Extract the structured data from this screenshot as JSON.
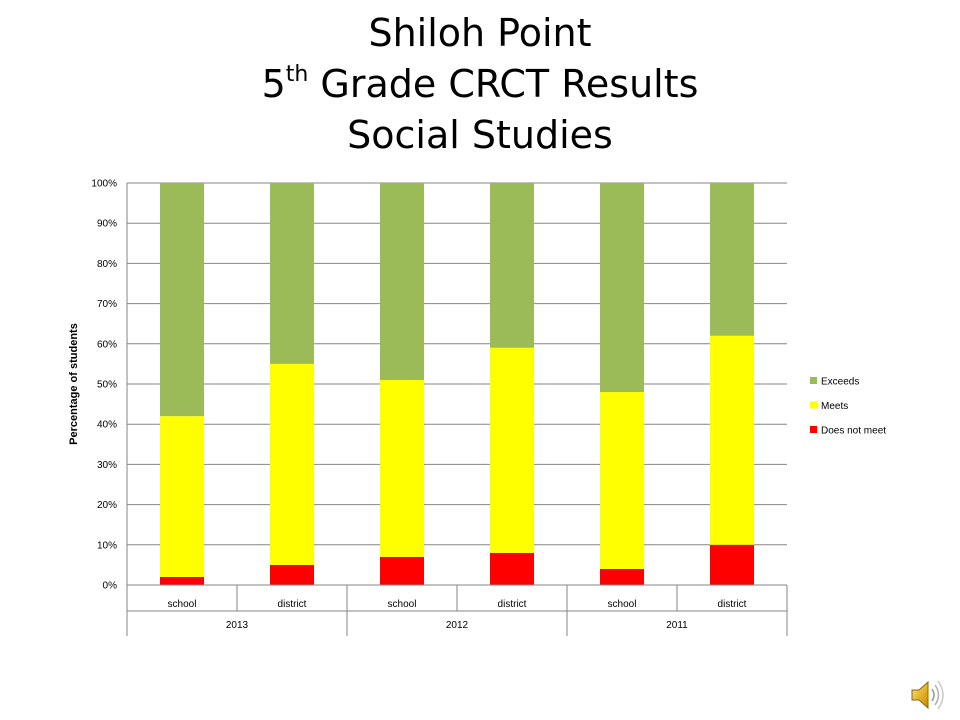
{
  "slide": {
    "title_line1": "Shiloh Point",
    "title_line2_num": "5",
    "title_line2_sup": "th",
    "title_line2_rest": " Grade CRCT Results",
    "title_line3": "Social Studies"
  },
  "audio_icon": "speaker-icon",
  "chart_data": {
    "type": "bar",
    "stacked": true,
    "ylabel": "Percentage of students",
    "ylim": [
      0,
      100
    ],
    "yticks": [
      "0%",
      "10%",
      "20%",
      "30%",
      "40%",
      "50%",
      "60%",
      "70%",
      "80%",
      "90%",
      "100%"
    ],
    "grid": true,
    "legend": "right",
    "categories": [
      "school",
      "district",
      "school",
      "district",
      "school",
      "district"
    ],
    "groups": [
      "2013",
      "2012",
      "2011"
    ],
    "series": [
      {
        "name": "Does not meet",
        "color": "#ff0000",
        "values": [
          2,
          5,
          7,
          8,
          4,
          10
        ]
      },
      {
        "name": "Meets",
        "color": "#ffff00",
        "values": [
          40,
          50,
          44,
          51,
          44,
          52
        ]
      },
      {
        "name": "Exceeds",
        "color": "#9bbb59",
        "values": [
          58,
          45,
          49,
          41,
          52,
          38
        ]
      }
    ],
    "legend_order": [
      "Exceeds",
      "Meets",
      "Does not meet"
    ]
  }
}
